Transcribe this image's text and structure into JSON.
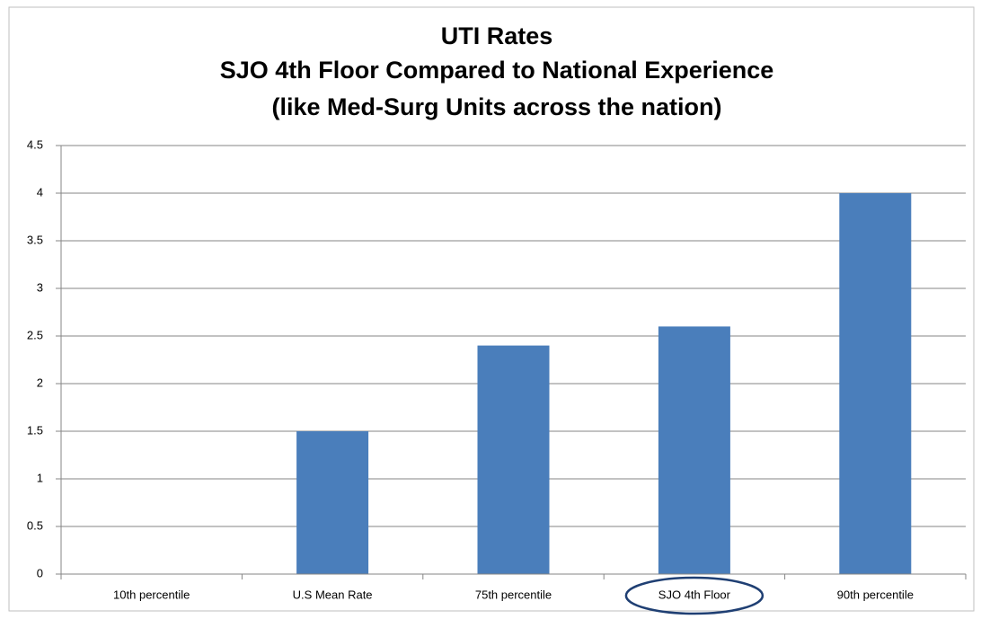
{
  "chart_data": {
    "type": "bar",
    "title": [
      "UTI Rates",
      "SJO 4th Floor Compared to National Experience",
      "(like Med-Surg Units across the nation)"
    ],
    "categories": [
      "10th percentile",
      "U.S Mean Rate",
      "75th percentile",
      "SJO 4th Floor",
      "90th percentile"
    ],
    "values": [
      0,
      1.5,
      2.4,
      2.6,
      4
    ],
    "color": "#4a7ebb",
    "ylim": [
      0,
      4.5
    ],
    "yticks": [
      0,
      0.5,
      1,
      1.5,
      2,
      2.5,
      3,
      3.5,
      4,
      4.5
    ],
    "grid": true
  }
}
